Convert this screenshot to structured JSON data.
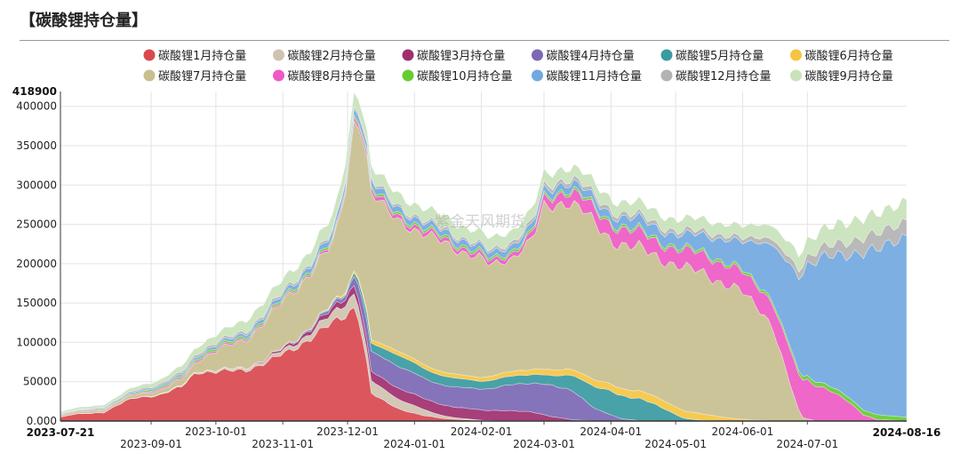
{
  "page": {
    "title": "【碳酸锂持仓量】"
  },
  "watermark": "紫金天风期货",
  "chart_data": {
    "type": "area",
    "stacked": true,
    "title": "碳酸锂持仓量",
    "ylim": [
      0,
      418900
    ],
    "y_max_label": "418900",
    "y_ticks": [
      0,
      50000,
      100000,
      150000,
      200000,
      250000,
      300000,
      350000,
      400000
    ],
    "y_tick_labels": [
      "0.000",
      "50000",
      "100000",
      "150000",
      "200000",
      "250000",
      "300000",
      "350000",
      "400000"
    ],
    "x_range": [
      "2023-07-21",
      "2024-08-16"
    ],
    "x_start_label": "2023-07-21",
    "x_end_label": "2024-08-16",
    "x_ticks": [
      {
        "date": "2023-09-01",
        "label": "2023-09-01"
      },
      {
        "date": "2023-10-01",
        "label": "2023-10-01"
      },
      {
        "date": "2023-11-01",
        "label": "2023-11-01"
      },
      {
        "date": "2023-12-01",
        "label": "2023-12-01"
      },
      {
        "date": "2024-01-01",
        "label": "2024-01-01"
      },
      {
        "date": "2024-02-01",
        "label": "2024-02-01"
      },
      {
        "date": "2024-03-01",
        "label": "2024-03-01"
      },
      {
        "date": "2024-04-01",
        "label": "2024-04-01"
      },
      {
        "date": "2024-05-01",
        "label": "2024-05-01"
      },
      {
        "date": "2024-06-01",
        "label": "2024-06-01"
      },
      {
        "date": "2024-07-01",
        "label": "2024-07-01"
      }
    ],
    "legend_position": "top",
    "stack_order": [
      "m1",
      "m2",
      "m3",
      "m4",
      "m5",
      "m6",
      "m7",
      "m8",
      "m10",
      "m11",
      "m12",
      "m9"
    ],
    "series": [
      {
        "key": "m1",
        "name": "碳酸锂1月持仓量",
        "color": "#d9484f",
        "points": [
          [
            "2023-07-21",
            5000
          ],
          [
            "2023-07-28",
            9000
          ],
          [
            "2023-08-10",
            11000
          ],
          [
            "2023-08-20",
            25000
          ],
          [
            "2023-08-25",
            30000
          ],
          [
            "2023-09-05",
            33000
          ],
          [
            "2023-09-15",
            43000
          ],
          [
            "2023-09-22",
            63000
          ],
          [
            "2023-10-01",
            62000
          ],
          [
            "2023-10-15",
            65000
          ],
          [
            "2023-10-25",
            75000
          ],
          [
            "2023-11-05",
            90000
          ],
          [
            "2023-11-15",
            108000
          ],
          [
            "2023-11-22",
            120000
          ],
          [
            "2023-11-28",
            130000
          ],
          [
            "2023-12-04",
            145000
          ],
          [
            "2023-12-06",
            135000
          ],
          [
            "2023-12-09",
            90000
          ],
          [
            "2023-12-12",
            35000
          ],
          [
            "2023-12-18",
            25000
          ],
          [
            "2023-12-25",
            15000
          ],
          [
            "2024-01-05",
            7000
          ],
          [
            "2024-01-15",
            3000
          ],
          [
            "2024-02-01",
            500
          ],
          [
            "2024-08-16",
            0
          ]
        ]
      },
      {
        "key": "m2",
        "name": "碳酸锂2月持仓量",
        "color": "#cfc3b0",
        "points": [
          [
            "2023-07-21",
            0
          ],
          [
            "2023-08-20",
            0
          ],
          [
            "2023-09-10",
            1000
          ],
          [
            "2023-10-01",
            2000
          ],
          [
            "2023-10-20",
            3000
          ],
          [
            "2023-11-10",
            6000
          ],
          [
            "2023-11-25",
            12000
          ],
          [
            "2023-12-04",
            18000
          ],
          [
            "2023-12-10",
            16000
          ],
          [
            "2023-12-20",
            14000
          ],
          [
            "2024-01-01",
            10000
          ],
          [
            "2024-01-10",
            5000
          ],
          [
            "2024-01-20",
            2000
          ],
          [
            "2024-02-01",
            500
          ],
          [
            "2024-02-10",
            0
          ],
          [
            "2024-08-16",
            0
          ]
        ]
      },
      {
        "key": "m3",
        "name": "碳酸锂3月持仓量",
        "color": "#9e2f6f",
        "points": [
          [
            "2023-07-21",
            0
          ],
          [
            "2023-10-01",
            0
          ],
          [
            "2023-10-20",
            1000
          ],
          [
            "2023-11-10",
            4000
          ],
          [
            "2023-11-25",
            7000
          ],
          [
            "2023-12-04",
            10000
          ],
          [
            "2023-12-12",
            12000
          ],
          [
            "2023-12-25",
            14000
          ],
          [
            "2024-01-10",
            14000
          ],
          [
            "2024-01-25",
            13000
          ],
          [
            "2024-02-10",
            13000
          ],
          [
            "2024-02-25",
            11000
          ],
          [
            "2024-03-05",
            5000
          ],
          [
            "2024-03-15",
            1000
          ],
          [
            "2024-03-25",
            0
          ],
          [
            "2024-08-16",
            0
          ]
        ]
      },
      {
        "key": "m4",
        "name": "碳酸锂4月持仓量",
        "color": "#7c68b4",
        "points": [
          [
            "2023-07-21",
            0
          ],
          [
            "2023-10-20",
            0
          ],
          [
            "2023-11-15",
            2000
          ],
          [
            "2023-12-01",
            5000
          ],
          [
            "2023-12-10",
            25000
          ],
          [
            "2023-12-20",
            28000
          ],
          [
            "2024-01-05",
            26000
          ],
          [
            "2024-01-20",
            25000
          ],
          [
            "2024-02-05",
            28000
          ],
          [
            "2024-02-20",
            35000
          ],
          [
            "2024-03-01",
            40000
          ],
          [
            "2024-03-15",
            36000
          ],
          [
            "2024-03-25",
            15000
          ],
          [
            "2024-04-05",
            3000
          ],
          [
            "2024-04-15",
            0
          ],
          [
            "2024-08-16",
            0
          ]
        ]
      },
      {
        "key": "m5",
        "name": "碳酸锂5月持仓量",
        "color": "#3a9aa0",
        "points": [
          [
            "2023-07-21",
            0
          ],
          [
            "2023-11-01",
            0
          ],
          [
            "2023-12-01",
            2000
          ],
          [
            "2023-12-10",
            10000
          ],
          [
            "2023-12-25",
            14000
          ],
          [
            "2024-01-10",
            12000
          ],
          [
            "2024-02-01",
            10000
          ],
          [
            "2024-02-20",
            11000
          ],
          [
            "2024-03-05",
            12000
          ],
          [
            "2024-03-20",
            25000
          ],
          [
            "2024-04-01",
            30000
          ],
          [
            "2024-04-15",
            28000
          ],
          [
            "2024-04-25",
            16000
          ],
          [
            "2024-05-05",
            3000
          ],
          [
            "2024-05-15",
            0
          ],
          [
            "2024-08-16",
            0
          ]
        ]
      },
      {
        "key": "m6",
        "name": "碳酸锂6月持仓量",
        "color": "#f5c542",
        "points": [
          [
            "2023-07-21",
            0
          ],
          [
            "2023-11-15",
            0
          ],
          [
            "2023-12-06",
            3000
          ],
          [
            "2023-12-15",
            5000
          ],
          [
            "2024-01-01",
            5000
          ],
          [
            "2024-02-01",
            5000
          ],
          [
            "2024-03-01",
            7000
          ],
          [
            "2024-04-01",
            9000
          ],
          [
            "2024-04-20",
            10000
          ],
          [
            "2024-05-01",
            10000
          ],
          [
            "2024-05-15",
            8000
          ],
          [
            "2024-05-25",
            4000
          ],
          [
            "2024-06-05",
            1000
          ],
          [
            "2024-06-15",
            0
          ],
          [
            "2024-08-16",
            0
          ]
        ]
      },
      {
        "key": "m7",
        "name": "碳酸锂7月持仓量",
        "color": "#c8bf90",
        "points": [
          [
            "2023-07-21",
            2000
          ],
          [
            "2023-08-15",
            3000
          ],
          [
            "2023-09-05",
            5000
          ],
          [
            "2023-09-20",
            10000
          ],
          [
            "2023-10-01",
            25000
          ],
          [
            "2023-10-15",
            35000
          ],
          [
            "2023-10-25",
            50000
          ],
          [
            "2023-11-05",
            62000
          ],
          [
            "2023-11-15",
            70000
          ],
          [
            "2023-11-25",
            75000
          ],
          [
            "2023-12-01",
            140000
          ],
          [
            "2023-12-04",
            190000
          ],
          [
            "2023-12-06",
            200000
          ],
          [
            "2023-12-08",
            200000
          ],
          [
            "2023-12-12",
            185000
          ],
          [
            "2023-12-20",
            170000
          ],
          [
            "2024-01-01",
            165000
          ],
          [
            "2024-01-15",
            165000
          ],
          [
            "2024-02-01",
            150000
          ],
          [
            "2024-02-05",
            140000
          ],
          [
            "2024-02-15",
            145000
          ],
          [
            "2024-02-25",
            165000
          ],
          [
            "2024-03-01",
            205000
          ],
          [
            "2024-03-10",
            215000
          ],
          [
            "2024-03-20",
            205000
          ],
          [
            "2024-04-01",
            185000
          ],
          [
            "2024-04-15",
            180000
          ],
          [
            "2024-05-01",
            180000
          ],
          [
            "2024-05-15",
            180000
          ],
          [
            "2024-06-01",
            160000
          ],
          [
            "2024-06-10",
            140000
          ],
          [
            "2024-06-15",
            120000
          ],
          [
            "2024-06-22",
            55000
          ],
          [
            "2024-06-28",
            5000
          ],
          [
            "2024-07-05",
            0
          ],
          [
            "2024-08-16",
            0
          ]
        ]
      },
      {
        "key": "m8",
        "name": "碳酸锂8月持仓量",
        "color": "#ee5ac4",
        "points": [
          [
            "2023-07-21",
            1000
          ],
          [
            "2023-08-20",
            1000
          ],
          [
            "2023-09-20",
            2000
          ],
          [
            "2023-10-20",
            2000
          ],
          [
            "2023-11-10",
            2000
          ],
          [
            "2023-11-25",
            3000
          ],
          [
            "2023-12-01",
            4000
          ],
          [
            "2023-12-10",
            5000
          ],
          [
            "2024-01-01",
            5000
          ],
          [
            "2024-02-01",
            5000
          ],
          [
            "2024-02-20",
            6000
          ],
          [
            "2024-03-01",
            10000
          ],
          [
            "2024-03-15",
            15000
          ],
          [
            "2024-04-01",
            20000
          ],
          [
            "2024-04-15",
            20000
          ],
          [
            "2024-05-01",
            20000
          ],
          [
            "2024-05-15",
            25000
          ],
          [
            "2024-06-01",
            25000
          ],
          [
            "2024-06-15",
            30000
          ],
          [
            "2024-06-25",
            45000
          ],
          [
            "2024-07-01",
            50000
          ],
          [
            "2024-07-10",
            40000
          ],
          [
            "2024-07-20",
            25000
          ],
          [
            "2024-07-27",
            8000
          ],
          [
            "2024-08-02",
            2000
          ],
          [
            "2024-08-16",
            0
          ]
        ]
      },
      {
        "key": "m10",
        "name": "碳酸锂10月持仓量",
        "color": "#66cc33",
        "points": [
          [
            "2023-07-21",
            500
          ],
          [
            "2023-09-01",
            1500
          ],
          [
            "2023-10-01",
            2500
          ],
          [
            "2023-11-01",
            2500
          ],
          [
            "2023-12-01",
            3000
          ],
          [
            "2024-01-01",
            3000
          ],
          [
            "2024-02-01",
            3000
          ],
          [
            "2024-03-01",
            3000
          ],
          [
            "2024-04-01",
            3000
          ],
          [
            "2024-05-01",
            3000
          ],
          [
            "2024-06-01",
            3000
          ],
          [
            "2024-06-20",
            4000
          ],
          [
            "2024-07-01",
            5000
          ],
          [
            "2024-07-15",
            6000
          ],
          [
            "2024-08-01",
            6000
          ],
          [
            "2024-08-16",
            5000
          ]
        ]
      },
      {
        "key": "m11",
        "name": "碳酸锂11月持仓量",
        "color": "#72a8e0",
        "points": [
          [
            "2023-07-21",
            500
          ],
          [
            "2023-09-01",
            2000
          ],
          [
            "2023-10-01",
            3000
          ],
          [
            "2023-11-01",
            5000
          ],
          [
            "2023-12-01",
            8000
          ],
          [
            "2024-01-01",
            7000
          ],
          [
            "2024-02-01",
            7000
          ],
          [
            "2024-03-01",
            8000
          ],
          [
            "2024-04-01",
            10000
          ],
          [
            "2024-04-15",
            14000
          ],
          [
            "2024-05-01",
            15000
          ],
          [
            "2024-05-15",
            22000
          ],
          [
            "2024-06-01",
            35000
          ],
          [
            "2024-06-15",
            70000
          ],
          [
            "2024-07-01",
            140000
          ],
          [
            "2024-07-15",
            175000
          ],
          [
            "2024-08-01",
            205000
          ],
          [
            "2024-08-10",
            228000
          ],
          [
            "2024-08-16",
            230000
          ]
        ]
      },
      {
        "key": "m12",
        "name": "碳酸锂12月持仓量",
        "color": "#b3b3b3",
        "points": [
          [
            "2023-07-21",
            500
          ],
          [
            "2023-08-15",
            1000
          ],
          [
            "2023-09-15",
            3000
          ],
          [
            "2023-10-15",
            3000
          ],
          [
            "2023-11-15",
            3000
          ],
          [
            "2023-12-01",
            3000
          ],
          [
            "2024-01-01",
            3000
          ],
          [
            "2024-02-01",
            3000
          ],
          [
            "2024-03-01",
            5000
          ],
          [
            "2024-04-01",
            5000
          ],
          [
            "2024-05-01",
            5000
          ],
          [
            "2024-06-01",
            5000
          ],
          [
            "2024-07-01",
            10000
          ],
          [
            "2024-07-15",
            15000
          ],
          [
            "2024-08-01",
            20000
          ],
          [
            "2024-08-16",
            20000
          ]
        ]
      },
      {
        "key": "m9",
        "name": "碳酸锂9月持仓量",
        "color": "#c9e2bb",
        "points": [
          [
            "2023-07-21",
            2000
          ],
          [
            "2023-08-15",
            3000
          ],
          [
            "2023-09-01",
            5000
          ],
          [
            "2023-10-01",
            10000
          ],
          [
            "2023-10-20",
            15000
          ],
          [
            "2023-11-10",
            15000
          ],
          [
            "2023-12-01",
            20000
          ],
          [
            "2023-12-10",
            15000
          ],
          [
            "2024-01-01",
            15000
          ],
          [
            "2024-02-01",
            15000
          ],
          [
            "2024-03-01",
            15000
          ],
          [
            "2024-04-01",
            15000
          ],
          [
            "2024-05-01",
            15000
          ],
          [
            "2024-06-01",
            15000
          ],
          [
            "2024-07-01",
            20000
          ],
          [
            "2024-07-15",
            25000
          ],
          [
            "2024-08-01",
            25000
          ],
          [
            "2024-08-16",
            25000
          ]
        ]
      }
    ]
  }
}
